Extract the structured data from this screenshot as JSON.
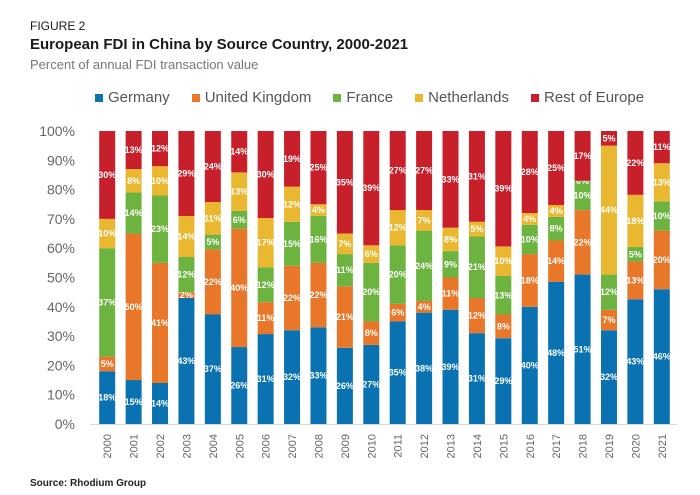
{
  "header": {
    "figure_label": "FIGURE 2",
    "title": "European FDI in China by Source Country, 2000-2021",
    "subtitle": "Percent of annual FDI transaction value"
  },
  "footer": {
    "source": "Source: Rhodium Group"
  },
  "chart_data": {
    "type": "bar",
    "stacked": true,
    "title": "European FDI in China by Source Country, 2000-2021",
    "subtitle": "Percent of annual FDI transaction value",
    "xlabel": "",
    "ylabel": "",
    "ylim": [
      0,
      100
    ],
    "yticks": [
      "0%",
      "10%",
      "20%",
      "30%",
      "40%",
      "50%",
      "60%",
      "70%",
      "80%",
      "90%",
      "100%"
    ],
    "grid": false,
    "legend_position": "top",
    "categories": [
      "2000",
      "2001",
      "2002",
      "2003",
      "2004",
      "2005",
      "2006",
      "2007",
      "2008",
      "2009",
      "2010",
      "2011",
      "2012",
      "2013",
      "2014",
      "2015",
      "2016",
      "2017",
      "2018",
      "2019",
      "2020",
      "2021"
    ],
    "series": [
      {
        "name": "Germany",
        "color": "#0a72b0",
        "values": [
          18,
          15,
          14,
          43,
          37,
          26,
          31,
          32,
          33,
          26,
          27,
          35,
          38,
          39,
          31,
          29,
          40,
          48,
          51,
          32,
          43,
          46
        ]
      },
      {
        "name": "United Kingdom",
        "color": "#e8772a",
        "values": [
          5,
          50,
          41,
          2,
          22,
          40,
          11,
          22,
          22,
          21,
          8,
          6,
          4,
          11,
          12,
          8,
          18,
          14,
          22,
          7,
          13,
          20
        ]
      },
      {
        "name": "France",
        "color": "#6db33f",
        "values": [
          37,
          14,
          23,
          12,
          5,
          6,
          12,
          15,
          16,
          11,
          20,
          20,
          24,
          9,
          21,
          13,
          10,
          8,
          10,
          12,
          5,
          10
        ]
      },
      {
        "name": "Netherlands",
        "color": "#e9b830",
        "values": [
          10,
          8,
          10,
          14,
          11,
          13,
          17,
          12,
          4,
          7,
          6,
          12,
          7,
          8,
          5,
          10,
          4,
          4,
          0,
          44,
          18,
          13
        ]
      },
      {
        "name": "Rest of Europe",
        "color": "#c8202a",
        "values": [
          30,
          13,
          12,
          29,
          24,
          14,
          30,
          19,
          25,
          35,
          39,
          27,
          27,
          33,
          31,
          39,
          28,
          25,
          17,
          5,
          22,
          11
        ]
      }
    ],
    "source": "Source: Rhodium Group"
  }
}
